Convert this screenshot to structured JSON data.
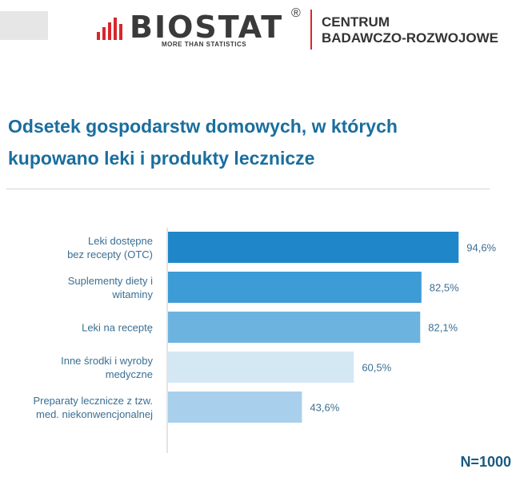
{
  "header": {
    "logo_word": "BIOSTAT",
    "logo_reg": "®",
    "logo_tagline": "MORE THAN STATISTICS",
    "logo_sub_line1": "CENTRUM",
    "logo_sub_line2": "BADAWCZO-ROZWOJOWE",
    "accent_color": "#d9262c"
  },
  "title": {
    "line1": "Odsetek gospodarstw domowych, w których",
    "line2": "kupowano  leki i produkty lecznicze"
  },
  "footer": {
    "sample_size": "N=1000"
  },
  "chart_data": {
    "type": "bar",
    "orientation": "horizontal",
    "title": "Odsetek gospodarstw domowych, w których kupowano  leki i produkty lecznicze",
    "categories": [
      [
        "Leki dostępne",
        "bez recepty (OTC)"
      ],
      [
        "Suplementy diety i",
        "witaminy"
      ],
      [
        "Leki na receptę"
      ],
      [
        "Inne środki i wyroby",
        "medyczne"
      ],
      [
        "Preparaty lecznicze z tzw.",
        "med. niekonwencjonalnej"
      ]
    ],
    "values": [
      94.6,
      82.5,
      82.1,
      60.5,
      43.6
    ],
    "value_labels": [
      "94,6%",
      "82,5%",
      "82,1%",
      "60,5%",
      "43,6%"
    ],
    "colors": [
      "#1f87c9",
      "#3d9bd6",
      "#6cb3e0",
      "#d4e8f4",
      "#a8d0ec"
    ],
    "xlim": [
      0,
      100
    ],
    "xlabel": "",
    "ylabel": ""
  }
}
